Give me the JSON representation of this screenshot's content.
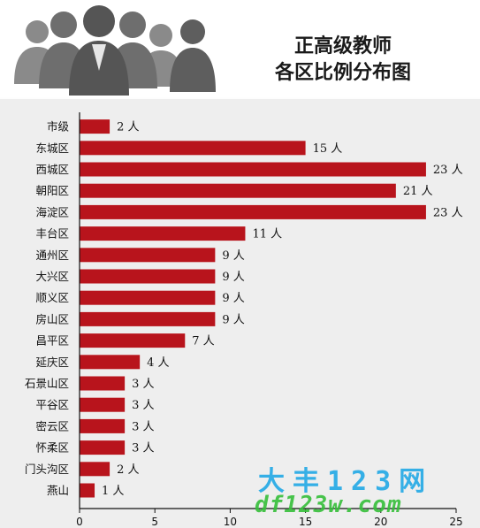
{
  "title_line1": "正高级教师",
  "title_line2": "各区比例分布图",
  "watermark_line1": "大丰123网",
  "watermark_line2": "df123w.com",
  "unit": "人",
  "colors": {
    "bar": "#b8141c",
    "banner_icon": "#7a7a7a",
    "panel": "#eeeeee"
  },
  "chart_data": {
    "type": "bar",
    "orientation": "horizontal",
    "title": "正高级教师各区比例分布图",
    "categories": [
      "市级",
      "东城区",
      "西城区",
      "朝阳区",
      "海淀区",
      "丰台区",
      "通州区",
      "大兴区",
      "顺义区",
      "房山区",
      "昌平区",
      "延庆区",
      "石景山区",
      "平谷区",
      "密云区",
      "怀柔区",
      "门头沟区",
      "燕山"
    ],
    "values": [
      2,
      15,
      23,
      21,
      23,
      11,
      9,
      9,
      9,
      9,
      7,
      4,
      3,
      3,
      3,
      3,
      2,
      1
    ],
    "data_labels": [
      "2 人",
      "15 人",
      "23 人",
      "21 人",
      "23 人",
      "11 人",
      "9 人",
      "9 人",
      "9 人",
      "9 人",
      "7 人",
      "4 人",
      "3 人",
      "3 人",
      "3 人",
      "3 人",
      "2 人",
      "1 人"
    ],
    "xlim": [
      0,
      25
    ],
    "xticks": [
      0,
      5,
      10,
      15,
      20,
      25
    ],
    "xlabel": "",
    "ylabel": "",
    "grid": false,
    "legend": "none"
  }
}
